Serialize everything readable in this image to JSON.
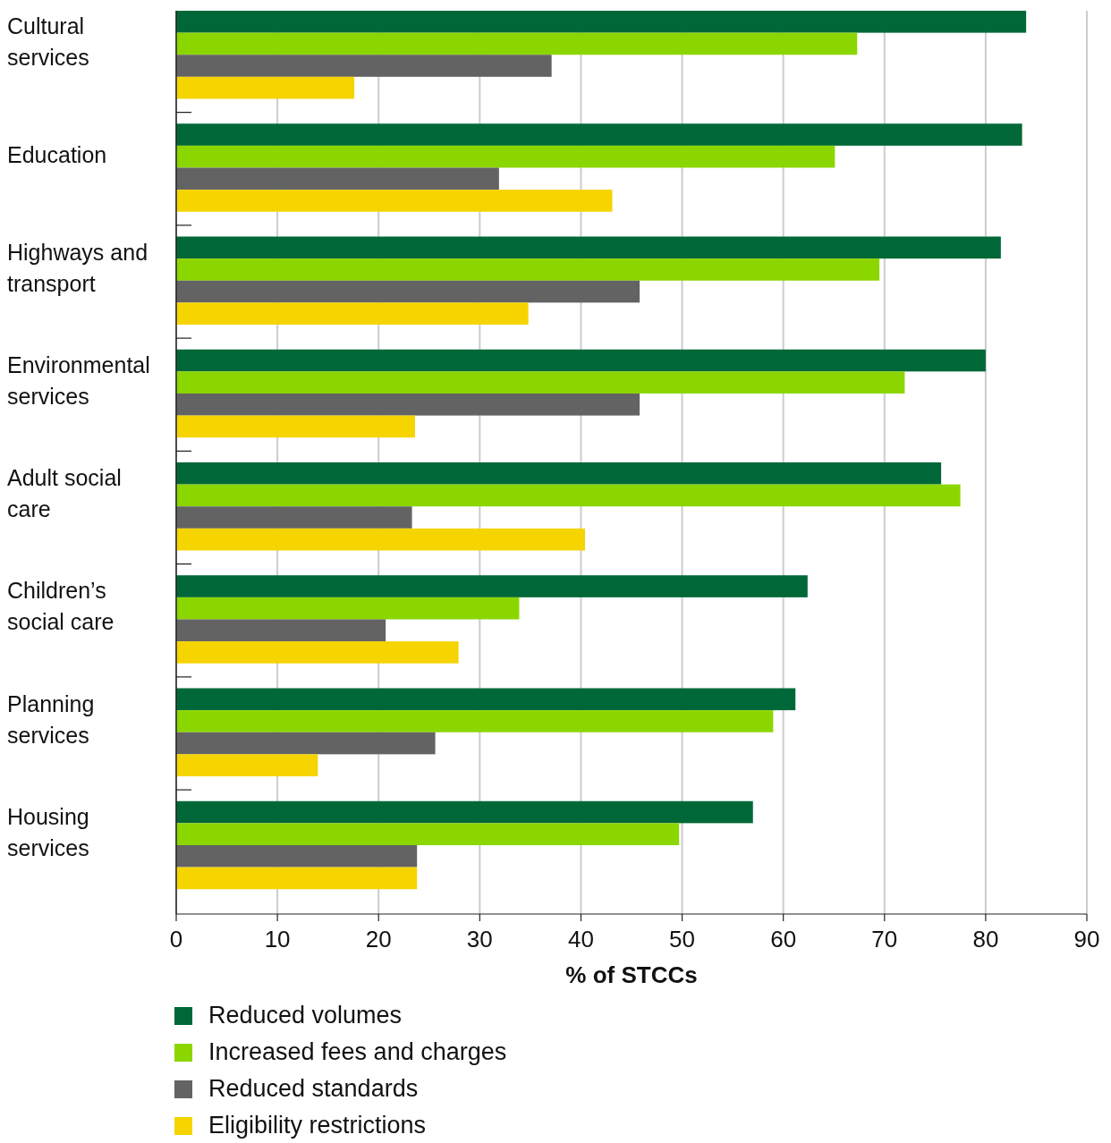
{
  "chart_data": {
    "type": "bar",
    "orientation": "horizontal",
    "xlabel": "% of STCCs",
    "categories": [
      "Cultural services",
      "Education",
      "Highways and transport",
      "Environmental services",
      "Adult social care",
      "Children’s social care",
      "Planning services",
      "Housing services"
    ],
    "series": [
      {
        "name": "Reduced volumes",
        "color": "#006838",
        "values": [
          84,
          83.6,
          81.5,
          80,
          75.6,
          62.4,
          61.2,
          57
        ]
      },
      {
        "name": "Increased fees and charges",
        "color": "#8cd600",
        "values": [
          67.3,
          65.1,
          69.5,
          72,
          77.5,
          33.9,
          59,
          49.7
        ]
      },
      {
        "name": "Reduced standards",
        "color": "#636363",
        "values": [
          37.1,
          31.9,
          45.8,
          45.8,
          23.3,
          20.7,
          25.6,
          23.8
        ]
      },
      {
        "name": "Eligibility restrictions",
        "color": "#f5d400",
        "values": [
          17.6,
          43.1,
          34.8,
          23.6,
          40.4,
          27.9,
          14,
          23.8
        ]
      }
    ],
    "xlim": [
      0,
      90
    ],
    "xticks": [
      0,
      10,
      20,
      30,
      40,
      50,
      60,
      70,
      80,
      90
    ],
    "grid": "x",
    "legend": "bottom"
  }
}
